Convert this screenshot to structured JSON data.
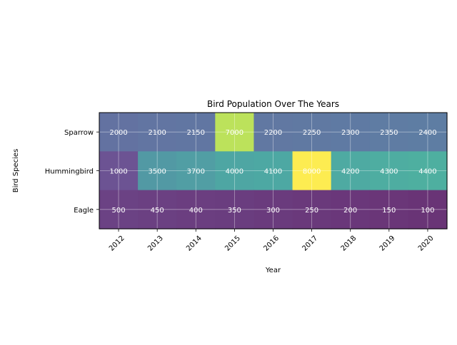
{
  "chart_data": {
    "type": "heatmap",
    "title": "Bird Population Over The Years",
    "xlabel": "Year",
    "ylabel": "Bird Species",
    "x": [
      "2012",
      "2013",
      "2014",
      "2015",
      "2016",
      "2017",
      "2018",
      "2019",
      "2020"
    ],
    "y": [
      "Sparrow",
      "Hummingbird",
      "Eagle"
    ],
    "values": [
      [
        2000,
        2100,
        2150,
        7000,
        2200,
        2250,
        2300,
        2350,
        2400
      ],
      [
        1000,
        3500,
        3700,
        4000,
        4100,
        8000,
        4200,
        4300,
        4400
      ],
      [
        500,
        450,
        400,
        350,
        300,
        250,
        200,
        150,
        100
      ]
    ],
    "colormap": "viridis",
    "cell_alpha": 0.8,
    "annotations": true,
    "annotation_color": "#ffffff",
    "grid": true,
    "x_tick_rotation": 45
  }
}
